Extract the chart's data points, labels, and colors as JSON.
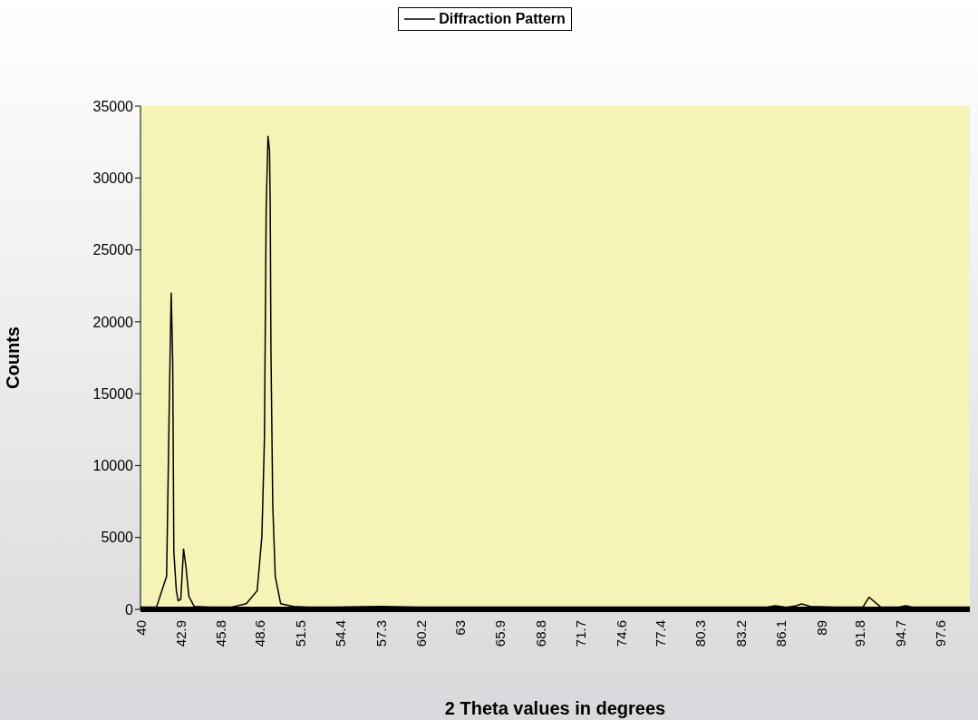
{
  "chart_data": {
    "type": "line",
    "xlabel": "2 Theta values in degrees",
    "ylabel": "Counts",
    "legend": "top",
    "x": [
      40,
      41.15,
      41.88,
      42.09,
      42.21,
      42.32,
      42.4,
      42.58,
      42.71,
      42.9,
      43.1,
      43.28,
      43.48,
      43.87,
      45,
      46.5,
      47.62,
      48.4,
      48.74,
      48.92,
      49.05,
      49.18,
      49.29,
      49.34,
      49.39,
      49.52,
      49.7,
      50.09,
      51,
      52,
      54,
      57.3,
      60,
      65,
      70,
      75,
      80,
      85,
      85.7,
      86.5,
      87.2,
      87.6,
      88.2,
      90,
      92,
      92.44,
      93.3,
      94.5,
      95.1,
      95.6,
      97,
      99.7
    ],
    "series": [
      {
        "name": "Diffraction Pattern",
        "color": "#000000",
        "values": [
          150,
          150,
          2300,
          15300,
          22000,
          17300,
          4000,
          1300,
          600,
          700,
          4200,
          2900,
          900,
          200,
          150,
          150,
          400,
          1300,
          5100,
          11800,
          28000,
          32900,
          31900,
          28000,
          18200,
          7300,
          2300,
          400,
          200,
          150,
          150,
          200,
          150,
          150,
          150,
          150,
          150,
          150,
          250,
          150,
          250,
          380,
          200,
          150,
          150,
          850,
          150,
          150,
          250,
          150,
          150,
          150
        ]
      }
    ],
    "xlim": [
      40,
      99.7
    ],
    "xticks": [
      40,
      42.9,
      45.8,
      48.6,
      51.5,
      54.4,
      57.3,
      60.2,
      63,
      65.9,
      68.8,
      71.7,
      74.6,
      77.4,
      80.3,
      83.2,
      86.1,
      89,
      91.8,
      94.7,
      97.6
    ],
    "ylim": [
      0,
      35000
    ],
    "yticks": [
      0,
      5000,
      10000,
      15000,
      20000,
      25000,
      30000,
      35000
    ],
    "grid": false,
    "marker": "none",
    "line_style": "solid"
  }
}
